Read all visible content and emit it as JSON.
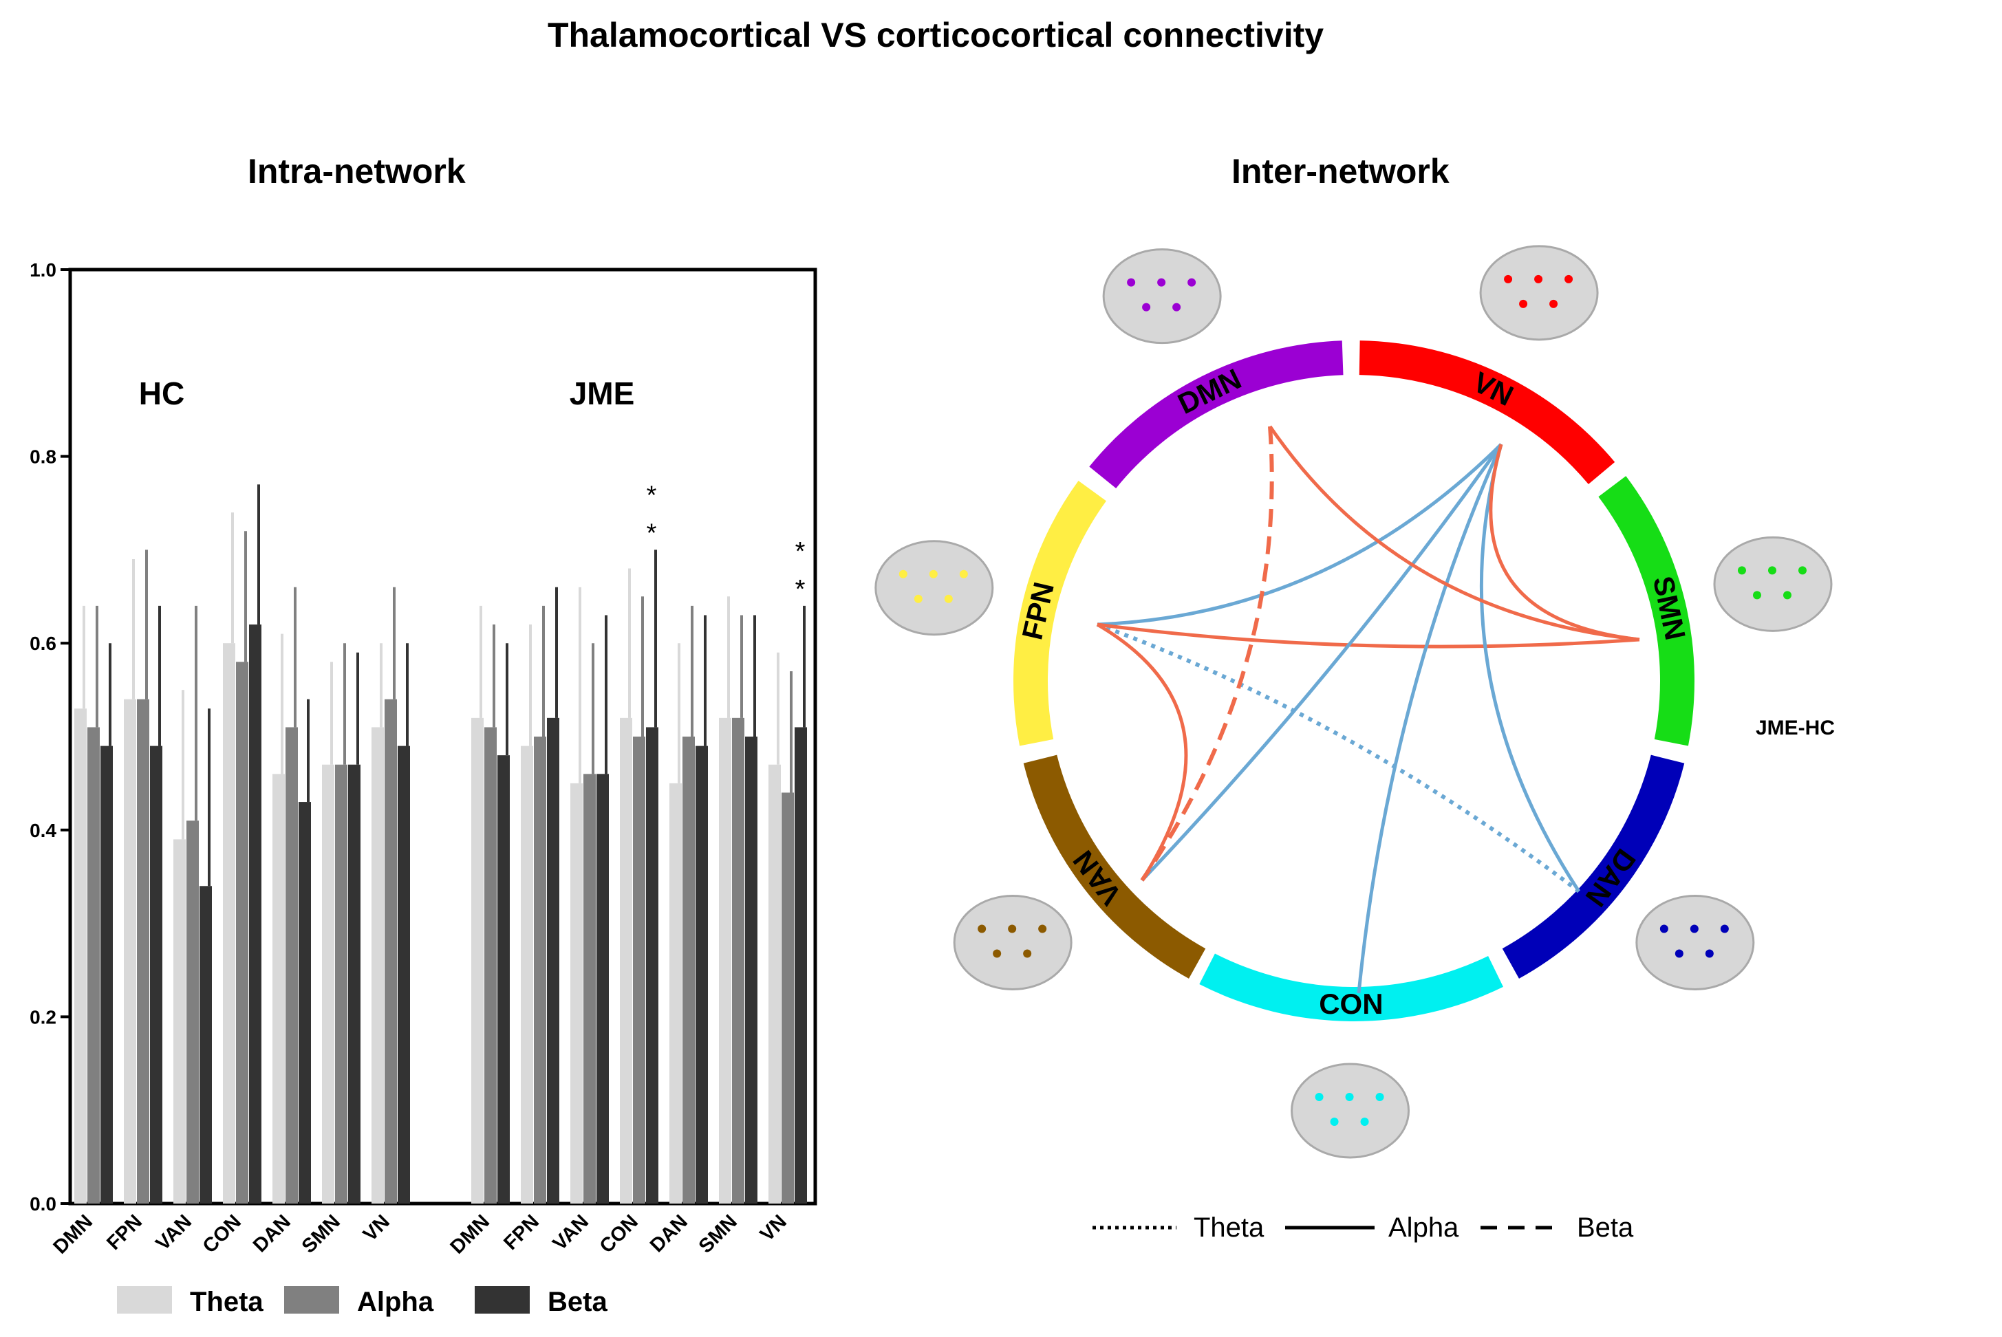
{
  "title": "Thalamocortical  VS  corticocortical connectivity",
  "left_panel_title": "Intra-network",
  "right_panel_title": "Inter-network",
  "chart_data": [
    {
      "type": "bar",
      "group_labels": [
        "HC",
        "JME"
      ],
      "categories": [
        "DMN",
        "FPN",
        "VAN",
        "CON",
        "DAN",
        "SMN",
        "VN"
      ],
      "ylim": [
        0,
        1.0
      ],
      "yticks": [
        "0.0",
        "0.2",
        "0.4",
        "0.6",
        "0.8",
        "1.0"
      ],
      "series": [
        {
          "name": "Theta",
          "color": "#d9d9d9",
          "HC": {
            "values": [
              0.53,
              0.54,
              0.39,
              0.6,
              0.46,
              0.47,
              0.51
            ],
            "errors": [
              0.11,
              0.15,
              0.16,
              0.14,
              0.15,
              0.11,
              0.09
            ]
          },
          "JME": {
            "values": [
              0.52,
              0.49,
              0.45,
              0.52,
              0.45,
              0.52,
              0.47
            ],
            "errors": [
              0.12,
              0.13,
              0.21,
              0.16,
              0.15,
              0.13,
              0.12
            ]
          }
        },
        {
          "name": "Alpha",
          "color": "#808080",
          "HC": {
            "values": [
              0.51,
              0.54,
              0.41,
              0.58,
              0.51,
              0.47,
              0.54
            ],
            "errors": [
              0.13,
              0.16,
              0.23,
              0.14,
              0.15,
              0.13,
              0.12
            ]
          },
          "JME": {
            "values": [
              0.51,
              0.5,
              0.46,
              0.5,
              0.5,
              0.52,
              0.44
            ],
            "errors": [
              0.11,
              0.14,
              0.14,
              0.15,
              0.14,
              0.11,
              0.13
            ]
          }
        },
        {
          "name": "Beta",
          "color": "#333333",
          "HC": {
            "values": [
              0.49,
              0.49,
              0.34,
              0.62,
              0.43,
              0.47,
              0.49
            ],
            "errors": [
              0.11,
              0.15,
              0.19,
              0.15,
              0.11,
              0.12,
              0.11
            ]
          },
          "JME": {
            "values": [
              0.48,
              0.52,
              0.46,
              0.51,
              0.49,
              0.5,
              0.51
            ],
            "errors": [
              0.12,
              0.14,
              0.17,
              0.19,
              0.14,
              0.13,
              0.13
            ]
          }
        }
      ],
      "significance": [
        {
          "group": "JME",
          "category": "CON",
          "label": "*"
        },
        {
          "group": "JME",
          "category": "CON",
          "label": "*"
        },
        {
          "group": "JME",
          "category": "VN",
          "label": "*"
        },
        {
          "group": "JME",
          "category": "VN",
          "label": "*"
        }
      ],
      "legend": [
        "Theta",
        "Alpha",
        "Beta"
      ]
    },
    {
      "type": "chord",
      "label": "JME-HC",
      "networks": [
        {
          "name": "DMN",
          "color": "#9b00d3"
        },
        {
          "name": "VN",
          "color": "#ff0000"
        },
        {
          "name": "SMN",
          "color": "#16dd16"
        },
        {
          "name": "DAN",
          "color": "#0000b8"
        },
        {
          "name": "CON",
          "color": "#00f0f0"
        },
        {
          "name": "VAN",
          "color": "#8c5a00"
        },
        {
          "name": "FPN",
          "color": "#ffee44"
        }
      ],
      "link_colors": {
        "increase": "#f06a4a",
        "decrease": "#6aa8d4"
      },
      "links": [
        {
          "from": "FPN",
          "to": "DAN",
          "band": "Theta",
          "color": "decrease"
        },
        {
          "from": "FPN",
          "to": "VN",
          "band": "Alpha",
          "color": "decrease"
        },
        {
          "from": "FPN",
          "to": "SMN",
          "band": "Alpha",
          "color": "increase"
        },
        {
          "from": "FPN",
          "to": "VAN",
          "band": "Alpha",
          "color": "increase"
        },
        {
          "from": "VN",
          "to": "VAN",
          "band": "Alpha",
          "color": "decrease"
        },
        {
          "from": "VN",
          "to": "CON",
          "band": "Alpha",
          "color": "decrease"
        },
        {
          "from": "VN",
          "to": "DAN",
          "band": "Alpha",
          "color": "decrease"
        },
        {
          "from": "VN",
          "to": "SMN",
          "band": "Alpha",
          "color": "increase"
        },
        {
          "from": "DMN",
          "to": "SMN",
          "band": "Alpha",
          "color": "increase"
        },
        {
          "from": "DMN",
          "to": "VAN",
          "band": "Beta",
          "color": "increase"
        }
      ],
      "legend": [
        "Theta",
        "Alpha",
        "Beta"
      ]
    }
  ]
}
